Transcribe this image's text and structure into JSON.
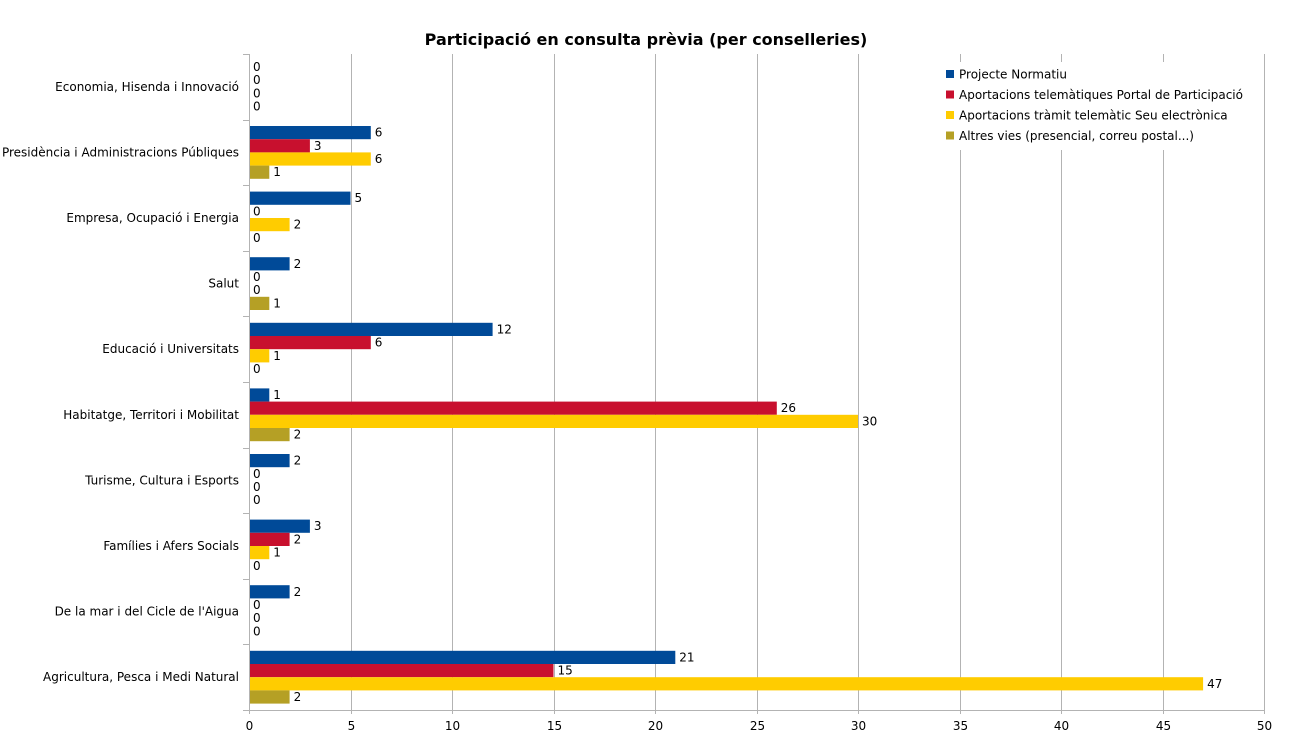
{
  "chart_data": {
    "type": "bar",
    "orientation": "horizontal",
    "title": "Participació en consulta prèvia (per conselleries)",
    "xlabel": "",
    "ylabel": "",
    "xlim": [
      0,
      50
    ],
    "x_ticks": [
      0,
      5,
      10,
      15,
      20,
      25,
      30,
      35,
      40,
      45,
      50
    ],
    "grid": true,
    "legend_position": "top-right",
    "categories": [
      "Economia, Hisenda i Innovació",
      "Presidència i Administracions Públiques",
      "Empresa, Ocupació i Energia",
      "Salut",
      "Educació i Universitats",
      "Habitatge, Territori i Mobilitat",
      "Turisme, Cultura i Esports",
      "Famílies i Afers Socials",
      "De la mar i del Cicle de l'Aigua",
      "Agricultura, Pesca i Medi Natural"
    ],
    "series": [
      {
        "name": "Projecte Normatiu",
        "color": "#004a98",
        "values": [
          0,
          6,
          5,
          2,
          12,
          1,
          2,
          3,
          2,
          21
        ]
      },
      {
        "name": "Aportacions telemàtiques Portal de Participació",
        "color": "#c8102e",
        "values": [
          0,
          3,
          0,
          0,
          6,
          26,
          0,
          2,
          0,
          15
        ]
      },
      {
        "name": "Aportacions tràmit telemàtic Seu electrònica",
        "color": "#ffcc00",
        "values": [
          0,
          6,
          2,
          0,
          1,
          30,
          0,
          1,
          0,
          47
        ]
      },
      {
        "name": "Altres vies (presencial, correu postal...)",
        "color": "#b5a025",
        "values": [
          0,
          1,
          0,
          1,
          0,
          2,
          0,
          0,
          0,
          2
        ]
      }
    ]
  }
}
